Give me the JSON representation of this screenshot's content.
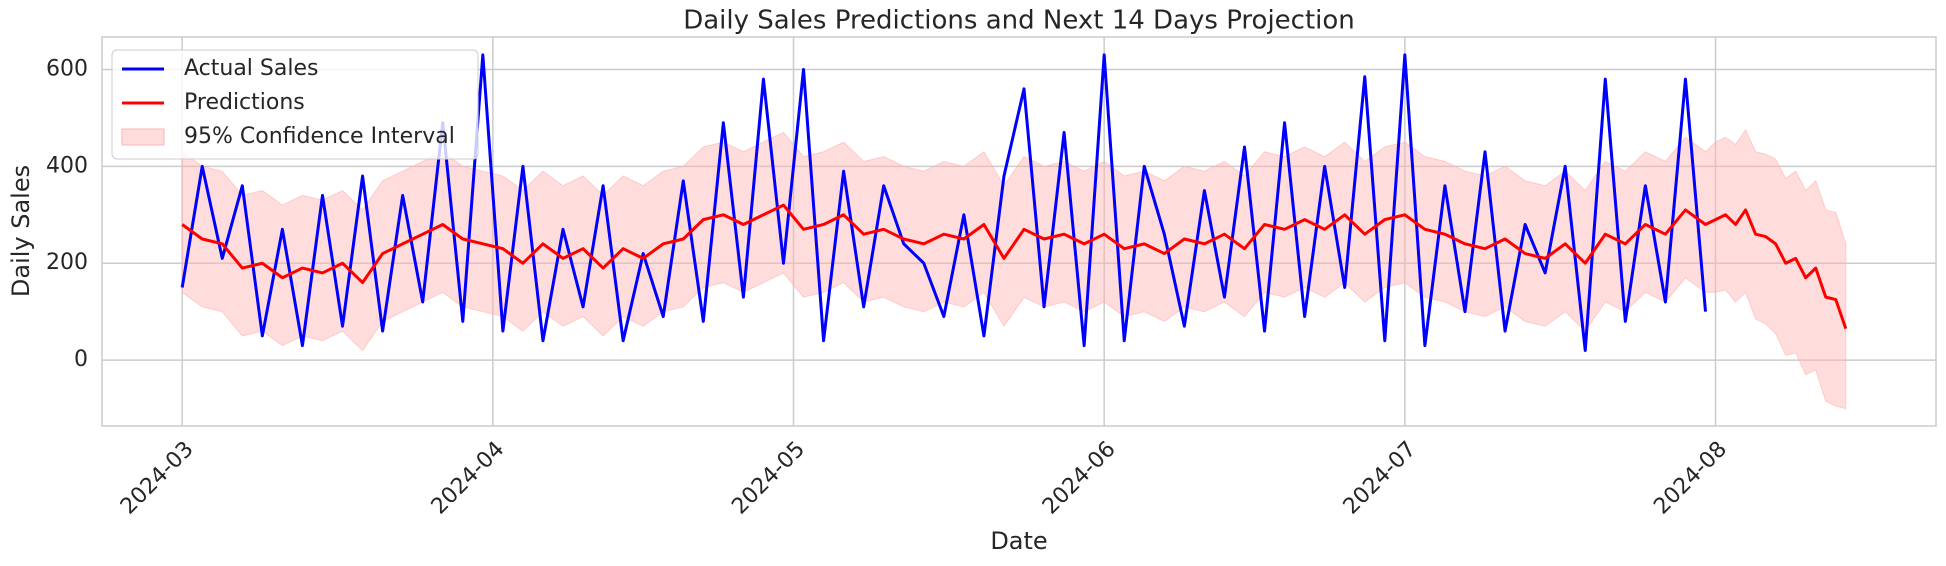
{
  "chart_data": {
    "type": "line",
    "title": "Daily Sales Predictions and Next 14 Days Projection",
    "x_label": "Date",
    "y_label": "Daily Sales",
    "x": [
      "2024-03-01",
      "2024-03-03",
      "2024-03-05",
      "2024-03-07",
      "2024-03-09",
      "2024-03-11",
      "2024-03-13",
      "2024-03-15",
      "2024-03-17",
      "2024-03-19",
      "2024-03-21",
      "2024-03-23",
      "2024-03-25",
      "2024-03-27",
      "2024-03-29",
      "2024-03-31",
      "2024-04-02",
      "2024-04-04",
      "2024-04-06",
      "2024-04-08",
      "2024-04-10",
      "2024-04-12",
      "2024-04-14",
      "2024-04-16",
      "2024-04-18",
      "2024-04-20",
      "2024-04-22",
      "2024-04-24",
      "2024-04-26",
      "2024-04-28",
      "2024-04-30",
      "2024-05-02",
      "2024-05-04",
      "2024-05-06",
      "2024-05-08",
      "2024-05-10",
      "2024-05-12",
      "2024-05-14",
      "2024-05-16",
      "2024-05-18",
      "2024-05-20",
      "2024-05-22",
      "2024-05-24",
      "2024-05-26",
      "2024-05-28",
      "2024-05-30",
      "2024-06-01",
      "2024-06-03",
      "2024-06-05",
      "2024-06-07",
      "2024-06-09",
      "2024-06-11",
      "2024-06-13",
      "2024-06-15",
      "2024-06-17",
      "2024-06-19",
      "2024-06-21",
      "2024-06-23",
      "2024-06-25",
      "2024-06-27",
      "2024-06-29",
      "2024-07-01",
      "2024-07-03",
      "2024-07-05",
      "2024-07-07",
      "2024-07-09",
      "2024-07-11",
      "2024-07-13",
      "2024-07-15",
      "2024-07-17",
      "2024-07-19",
      "2024-07-21",
      "2024-07-23",
      "2024-07-25",
      "2024-07-27",
      "2024-07-29",
      "2024-07-31",
      "2024-08-01",
      "2024-08-02",
      "2024-08-03",
      "2024-08-04",
      "2024-08-05",
      "2024-08-06",
      "2024-08-07",
      "2024-08-08",
      "2024-08-09",
      "2024-08-10",
      "2024-08-11",
      "2024-08-12",
      "2024-08-13",
      "2024-08-14"
    ],
    "series": [
      {
        "name": "Actual Sales",
        "color": "#0000ff",
        "values": [
          150,
          400,
          210,
          360,
          50,
          270,
          30,
          340,
          70,
          380,
          60,
          340,
          120,
          490,
          80,
          630,
          60,
          400,
          40,
          270,
          110,
          360,
          40,
          220,
          90,
          370,
          80,
          490,
          130,
          580,
          200,
          600,
          40,
          390,
          110,
          360,
          240,
          200,
          90,
          300,
          50,
          380,
          560,
          110,
          470,
          30,
          630,
          40,
          400,
          260,
          70,
          350,
          130,
          440,
          60,
          490,
          90,
          400,
          150,
          585,
          40,
          630,
          30,
          360,
          100,
          430,
          60,
          280,
          180,
          400,
          20,
          580,
          80,
          360,
          120,
          580,
          100,
          null,
          null,
          null,
          null,
          null,
          null,
          null,
          null,
          null,
          null,
          null,
          null,
          null,
          null
        ]
      },
      {
        "name": "Predictions",
        "color": "#ff0000",
        "values": [
          280,
          250,
          240,
          190,
          200,
          170,
          190,
          180,
          200,
          160,
          220,
          240,
          260,
          280,
          250,
          240,
          230,
          200,
          240,
          210,
          230,
          190,
          230,
          210,
          240,
          250,
          290,
          300,
          280,
          300,
          320,
          270,
          280,
          300,
          260,
          270,
          250,
          240,
          260,
          250,
          280,
          210,
          270,
          250,
          260,
          240,
          260,
          230,
          240,
          220,
          250,
          240,
          260,
          230,
          280,
          270,
          290,
          270,
          300,
          260,
          290,
          300,
          270,
          260,
          240,
          230,
          250,
          220,
          210,
          240,
          200,
          260,
          240,
          280,
          260,
          310,
          280,
          290,
          300,
          280,
          310,
          260,
          255,
          240,
          200,
          210,
          170,
          190,
          130,
          125,
          65
        ]
      }
    ],
    "band": {
      "name": "95% Confidence Interval",
      "color": "#ffb3b3",
      "lower": [
        140,
        110,
        100,
        50,
        60,
        30,
        50,
        40,
        60,
        20,
        80,
        100,
        120,
        140,
        110,
        100,
        90,
        60,
        100,
        70,
        90,
        50,
        90,
        70,
        100,
        110,
        150,
        160,
        140,
        160,
        180,
        130,
        140,
        160,
        120,
        130,
        110,
        100,
        120,
        110,
        140,
        70,
        130,
        110,
        120,
        100,
        120,
        90,
        100,
        80,
        110,
        100,
        120,
        90,
        140,
        130,
        150,
        130,
        160,
        120,
        150,
        160,
        130,
        120,
        100,
        90,
        110,
        80,
        70,
        100,
        60,
        120,
        100,
        140,
        120,
        170,
        140,
        140,
        145,
        120,
        140,
        85,
        75,
        55,
        10,
        15,
        -30,
        -20,
        -85,
        -95,
        -100
      ],
      "upper": [
        430,
        400,
        390,
        340,
        350,
        320,
        340,
        330,
        350,
        310,
        370,
        390,
        410,
        430,
        400,
        390,
        380,
        350,
        390,
        360,
        380,
        340,
        380,
        360,
        390,
        400,
        440,
        450,
        430,
        450,
        470,
        420,
        430,
        450,
        410,
        420,
        400,
        390,
        410,
        400,
        430,
        360,
        420,
        400,
        410,
        390,
        410,
        380,
        390,
        370,
        400,
        390,
        410,
        380,
        430,
        420,
        440,
        420,
        450,
        410,
        440,
        450,
        420,
        410,
        390,
        380,
        400,
        370,
        360,
        390,
        350,
        410,
        390,
        430,
        410,
        460,
        430,
        450,
        460,
        445,
        475,
        430,
        425,
        415,
        375,
        390,
        350,
        370,
        310,
        305,
        240
      ]
    },
    "xlim": [
      "2024-02-22",
      "2024-08-23"
    ],
    "xticks": [
      {
        "value": "2024-03-01",
        "label": "2024-03"
      },
      {
        "value": "2024-04-01",
        "label": "2024-04"
      },
      {
        "value": "2024-05-01",
        "label": "2024-05"
      },
      {
        "value": "2024-06-01",
        "label": "2024-06"
      },
      {
        "value": "2024-07-01",
        "label": "2024-07"
      },
      {
        "value": "2024-08-01",
        "label": "2024-08"
      }
    ],
    "ylim": [
      -136,
      667
    ],
    "yticks": [
      0,
      200,
      400,
      600
    ],
    "grid": true,
    "legend": "upper left"
  }
}
